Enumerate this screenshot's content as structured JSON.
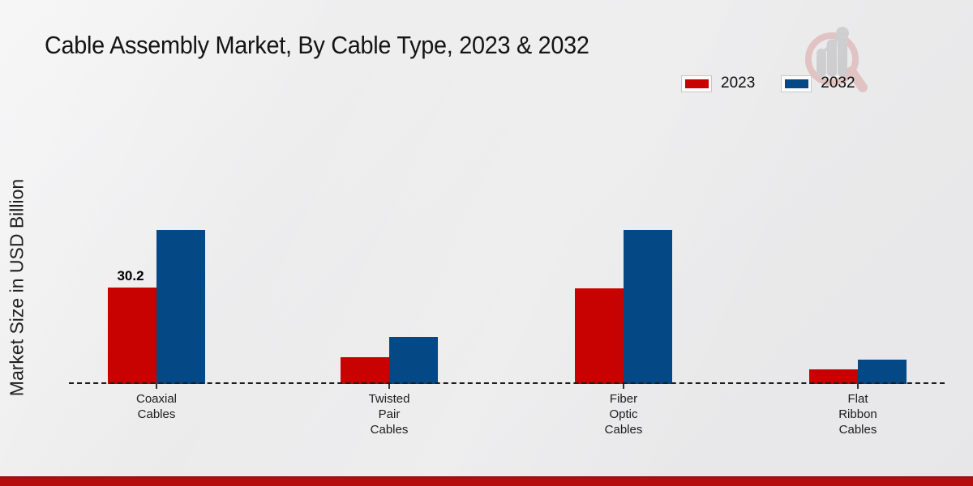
{
  "title": "Cable Assembly Market, By Cable Type, 2023 & 2032",
  "y_axis_label": "Market Size in USD Billion",
  "legend": [
    {
      "label": "2023",
      "color": "#c80101"
    },
    {
      "label": "2032",
      "color": "#044985"
    }
  ],
  "colors": {
    "bar_2023": "#c80101",
    "bar_2032": "#044985",
    "footer_band": "#b50d0d",
    "background": "#ebebec",
    "baseline": "#1e1e1e"
  },
  "icons": {
    "logo": "magnifier-growth-chart-logo"
  },
  "chart_data": {
    "type": "bar",
    "title": "Cable Assembly Market, By Cable Type, 2023 & 2032",
    "xlabel": "",
    "ylabel": "Market Size in USD Billion",
    "categories": [
      "Coaxial Cables",
      "Twisted Pair Cables",
      "Fiber Optic Cables",
      "Flat Ribbon Cables"
    ],
    "category_label_lines": [
      [
        "Coaxial",
        "Cables"
      ],
      [
        "Twisted",
        "Pair",
        "Cables"
      ],
      [
        "Fiber",
        "Optic",
        "Cables"
      ],
      [
        "Flat",
        "Ribbon",
        "Cables"
      ]
    ],
    "series": [
      {
        "name": "2023",
        "color": "#c80101",
        "values": [
          30.2,
          8.5,
          30.0,
          4.6
        ]
      },
      {
        "name": "2032",
        "color": "#044985",
        "values": [
          48.2,
          14.6,
          48.1,
          7.6
        ]
      }
    ],
    "data_labels": [
      {
        "series": "2023",
        "category": "Coaxial Cables",
        "text": "30.2"
      }
    ],
    "ylim": [
      0,
      55
    ],
    "grid": false,
    "axis_line_style": "dashed-baseline-only",
    "legend_position": "top-right",
    "units": "USD Billion"
  }
}
